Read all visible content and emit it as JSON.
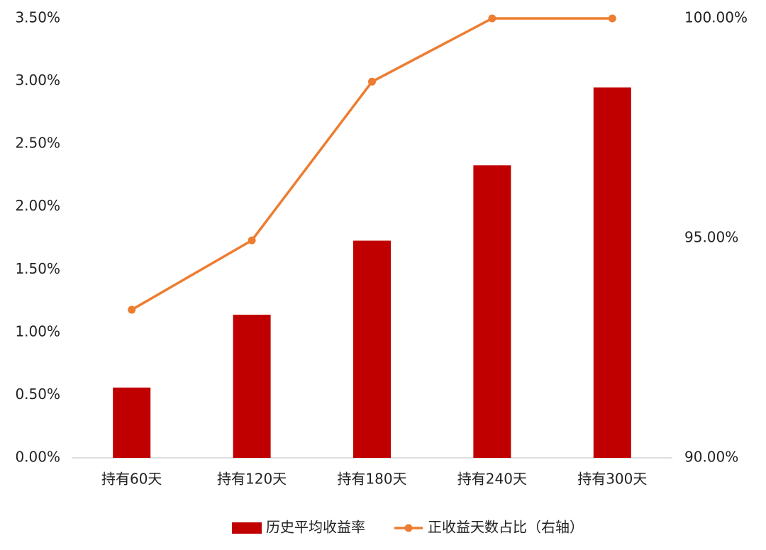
{
  "chart_data": {
    "type": "bar-line",
    "categories": [
      "持有60天",
      "持有120天",
      "持有180天",
      "持有240天",
      "持有300天"
    ],
    "series": [
      {
        "name": "历史平均收益率",
        "type": "bar",
        "color": "#c00000",
        "values": [
          0.56,
          1.14,
          1.73,
          2.33,
          2.95
        ]
      },
      {
        "name": "正收益天数占比（右轴）",
        "type": "line",
        "axis": "y2",
        "color": "#ed7d31",
        "values": [
          93.37,
          94.95,
          98.56,
          100,
          100
        ]
      }
    ],
    "ylim": [
      0,
      3.5
    ],
    "yticks": [
      {
        "value": 0,
        "label": "0.00%"
      },
      {
        "value": 0.5,
        "label": "0.50%"
      },
      {
        "value": 1,
        "label": "1.00%"
      },
      {
        "value": 1.5,
        "label": "1.50%"
      },
      {
        "value": 2,
        "label": "2.00%"
      },
      {
        "value": 2.5,
        "label": "2.50%"
      },
      {
        "value": 3,
        "label": "3.00%"
      },
      {
        "value": 3.5,
        "label": "3.50%"
      }
    ],
    "y2lim": [
      90,
      100
    ],
    "y2ticks": [
      {
        "value": 90,
        "label": "90.00%"
      },
      {
        "value": 95,
        "label": "95.00%"
      },
      {
        "value": 100,
        "label": "100.00%"
      }
    ],
    "grid": false,
    "legend": "bottom"
  }
}
